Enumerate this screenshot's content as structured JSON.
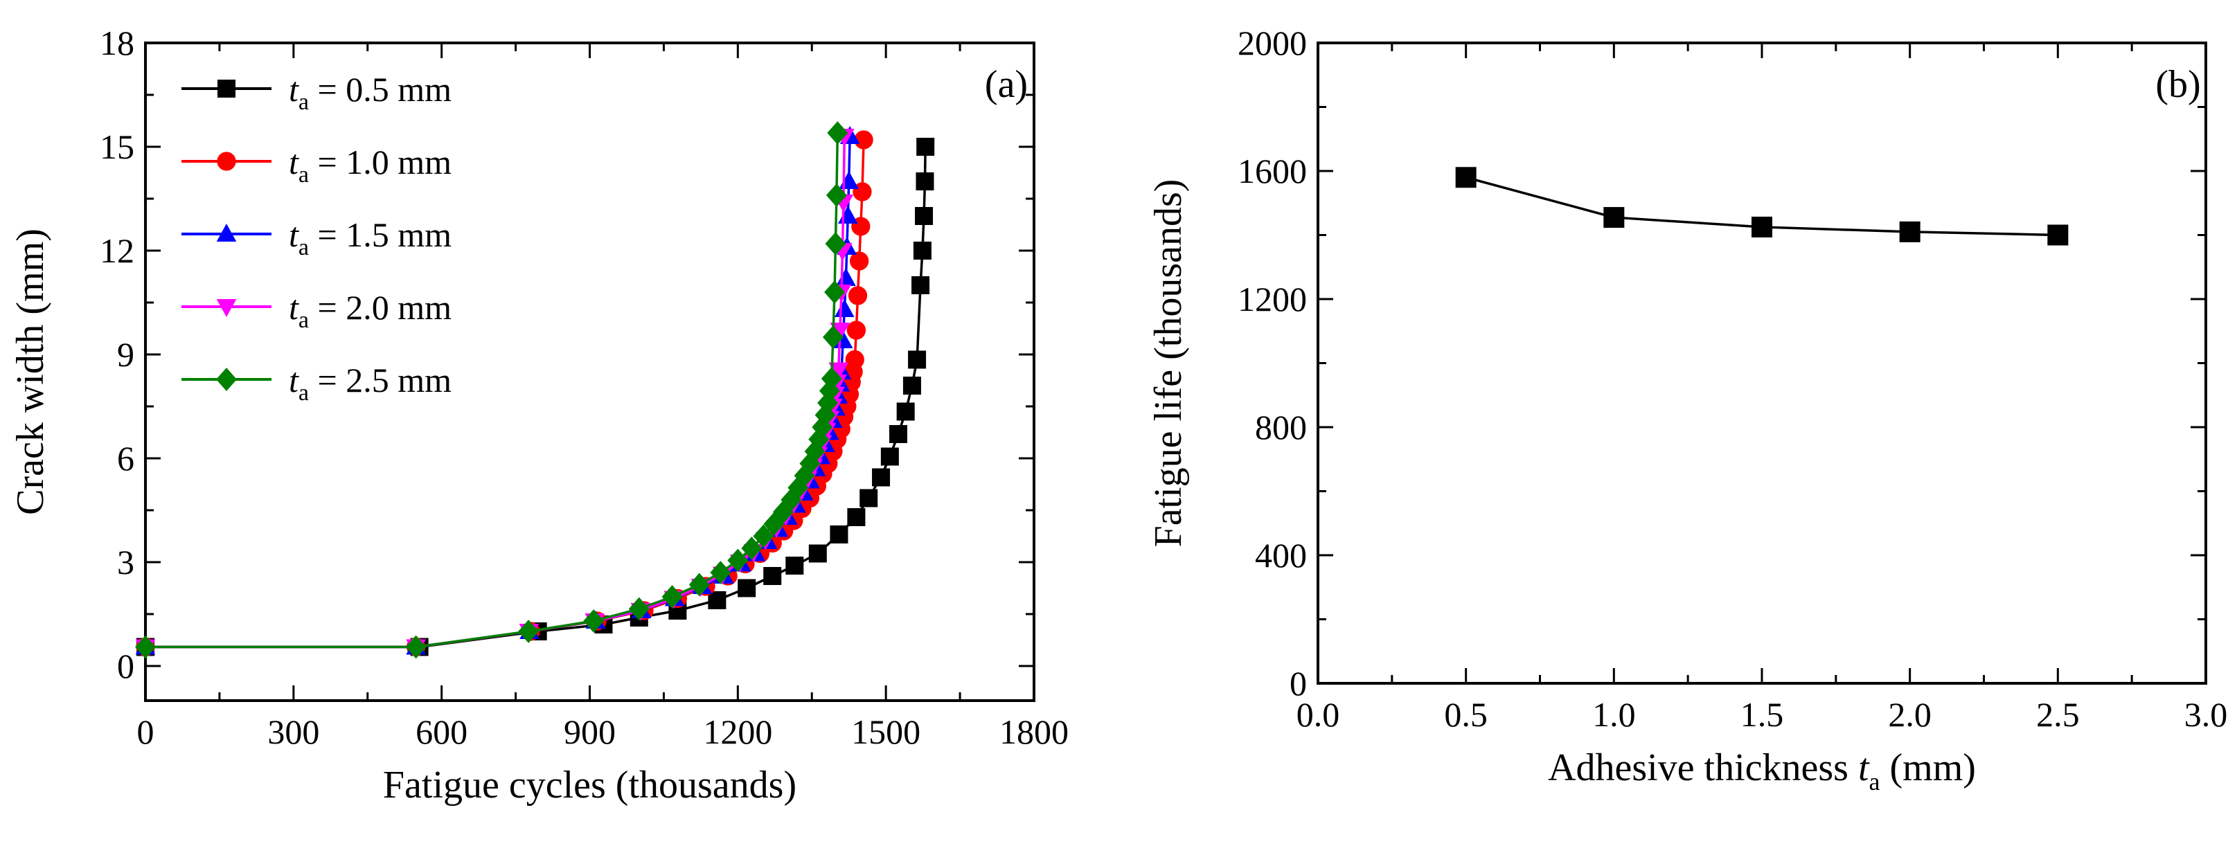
{
  "chart_data": [
    {
      "id": "a",
      "type": "line",
      "panel_label": "(a)",
      "xlabel": "Fatigue cycles (thousands)",
      "ylabel": "Crack width (mm)",
      "xlim": [
        0,
        1800
      ],
      "ylim": [
        -1,
        18
      ],
      "xticks": [
        0,
        300,
        600,
        900,
        1200,
        1500,
        1800
      ],
      "yticks": [
        0,
        3,
        6,
        9,
        12,
        15,
        18
      ],
      "legend_position": "top-left",
      "legend_prefix": "t",
      "legend_subscript": "a",
      "series": [
        {
          "name": "t_a = 0.5 mm",
          "legend_value": " = 0.5 mm",
          "color": "#000000",
          "marker": "square",
          "x": [
            0,
            555,
            795,
            928,
            1000,
            1078,
            1158,
            1218,
            1270,
            1315,
            1362,
            1405,
            1440,
            1465,
            1490,
            1508,
            1525,
            1540,
            1553,
            1563,
            1570,
            1574,
            1577,
            1579,
            1580
          ],
          "y": [
            0.55,
            0.55,
            1.0,
            1.2,
            1.4,
            1.6,
            1.9,
            2.25,
            2.6,
            2.9,
            3.25,
            3.8,
            4.3,
            4.85,
            5.45,
            6.05,
            6.7,
            7.35,
            8.1,
            8.85,
            11.0,
            12.0,
            13.0,
            14.0,
            15.0
          ]
        },
        {
          "name": "t_a = 1.0 mm",
          "legend_value": " = 1.0 mm",
          "color": "#ff0000",
          "marker": "circle",
          "x": [
            0,
            548,
            780,
            915,
            1010,
            1078,
            1135,
            1180,
            1215,
            1245,
            1270,
            1293,
            1313,
            1330,
            1346,
            1360,
            1372,
            1383,
            1393,
            1401,
            1409,
            1415,
            1421,
            1426,
            1430,
            1434,
            1437,
            1440,
            1443,
            1446,
            1449,
            1452,
            1455
          ],
          "y": [
            0.55,
            0.55,
            1.0,
            1.3,
            1.6,
            1.95,
            2.3,
            2.6,
            2.95,
            3.25,
            3.55,
            3.9,
            4.2,
            4.55,
            4.85,
            5.2,
            5.55,
            5.85,
            6.2,
            6.55,
            6.85,
            7.2,
            7.5,
            7.85,
            8.2,
            8.5,
            8.85,
            9.7,
            10.7,
            11.7,
            12.7,
            13.7,
            15.2
          ]
        },
        {
          "name": "t_a = 1.5 mm",
          "legend_value": " = 1.5 mm",
          "color": "#0000ff",
          "marker": "triangle-up",
          "x": [
            0,
            548,
            778,
            912,
            1005,
            1072,
            1128,
            1172,
            1207,
            1236,
            1260,
            1282,
            1301,
            1318,
            1333,
            1346,
            1358,
            1368,
            1377,
            1385,
            1392,
            1398,
            1403,
            1407,
            1410,
            1413,
            1416,
            1419,
            1421,
            1423,
            1425,
            1427
          ],
          "y": [
            0.55,
            0.55,
            1.0,
            1.3,
            1.6,
            1.95,
            2.3,
            2.6,
            2.95,
            3.25,
            3.6,
            3.95,
            4.3,
            4.65,
            5.0,
            5.35,
            5.7,
            6.05,
            6.4,
            6.75,
            7.1,
            7.45,
            7.8,
            8.15,
            8.5,
            9.4,
            10.3,
            11.2,
            12.1,
            13.0,
            14.0,
            15.3
          ]
        },
        {
          "name": "t_a = 2.0 mm",
          "legend_value": " = 2.0 mm",
          "color": "#ff00ff",
          "marker": "triangle-down",
          "x": [
            0,
            548,
            777,
            910,
            1003,
            1070,
            1125,
            1169,
            1204,
            1232,
            1256,
            1278,
            1297,
            1313,
            1328,
            1341,
            1352,
            1362,
            1371,
            1379,
            1386,
            1392,
            1397,
            1401,
            1404,
            1407,
            1410,
            1412,
            1414,
            1416
          ],
          "y": [
            0.55,
            0.55,
            1.0,
            1.3,
            1.6,
            1.95,
            2.3,
            2.65,
            3.0,
            3.3,
            3.65,
            4.0,
            4.35,
            4.7,
            5.05,
            5.4,
            5.75,
            6.1,
            6.45,
            6.8,
            7.15,
            7.5,
            7.85,
            8.2,
            8.55,
            9.7,
            10.8,
            12.0,
            13.4,
            15.3
          ]
        },
        {
          "name": "t_a = 2.5 mm",
          "legend_value": " = 2.5 mm",
          "color": "#008000",
          "marker": "diamond",
          "x": [
            0,
            548,
            776,
            908,
            1000,
            1067,
            1122,
            1165,
            1200,
            1228,
            1252,
            1273,
            1292,
            1308,
            1322,
            1335,
            1346,
            1356,
            1364,
            1371,
            1377,
            1382,
            1386,
            1390,
            1393,
            1396,
            1398,
            1400,
            1402
          ],
          "y": [
            0.55,
            0.55,
            1.0,
            1.3,
            1.65,
            2.0,
            2.35,
            2.7,
            3.05,
            3.4,
            3.75,
            4.1,
            4.45,
            4.8,
            5.15,
            5.5,
            5.85,
            6.2,
            6.55,
            6.9,
            7.25,
            7.6,
            7.95,
            8.3,
            9.5,
            10.8,
            12.2,
            13.6,
            15.4
          ]
        }
      ]
    },
    {
      "id": "b",
      "type": "line",
      "panel_label": "(b)",
      "xlabel": "Adhesive thickness ",
      "xlabel_symbol": "t",
      "xlabel_subscript": "a",
      "xlabel_unit": " (mm)",
      "ylabel": "Fatigue life (thousands)",
      "xlim": [
        0.0,
        3.0
      ],
      "ylim": [
        0,
        2000
      ],
      "xticks": [
        "0.0",
        "0.5",
        "1.0",
        "1.5",
        "2.0",
        "2.5",
        "3.0"
      ],
      "yticks": [
        0,
        400,
        800,
        1200,
        1600,
        2000
      ],
      "series": [
        {
          "name": "Fatigue life",
          "color": "#000000",
          "marker": "square",
          "x": [
            0.5,
            1.0,
            1.5,
            2.0,
            2.5
          ],
          "y": [
            1580,
            1455,
            1425,
            1410,
            1400
          ]
        }
      ]
    }
  ]
}
